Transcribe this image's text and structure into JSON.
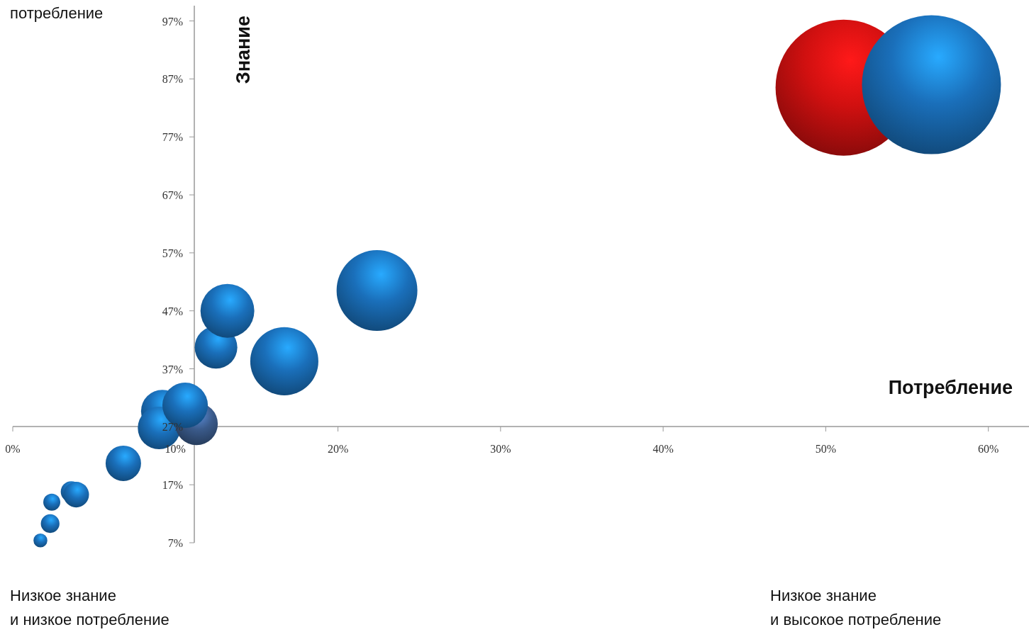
{
  "chart_data": {
    "type": "bubble",
    "xlabel": "Потребление",
    "ylabel": "Знание",
    "annotations": [
      "потребление",
      "Низкое знание\nи низкое потребление",
      "Низкое знание\nи высокое потребление"
    ],
    "xlim": [
      0,
      62.5
    ],
    "ylim": [
      7,
      100
    ],
    "xticks": [
      {
        "value": 0,
        "label": "0%"
      },
      {
        "value": 10,
        "label": "10%"
      },
      {
        "value": 20,
        "label": "20%"
      },
      {
        "value": 30,
        "label": "30%"
      },
      {
        "value": 40,
        "label": "40%"
      },
      {
        "value": 50,
        "label": "50%"
      },
      {
        "value": 60,
        "label": "60%"
      }
    ],
    "yticks": [
      {
        "value": 7,
        "label": "7%"
      },
      {
        "value": 17,
        "label": "17%"
      },
      {
        "value": 27,
        "label": "27%"
      },
      {
        "value": 37,
        "label": "37%"
      },
      {
        "value": 47,
        "label": "47%"
      },
      {
        "value": 57,
        "label": "57%"
      },
      {
        "value": 67,
        "label": "67%"
      },
      {
        "value": 77,
        "label": "77%"
      },
      {
        "value": 87,
        "label": "87%"
      },
      {
        "value": 97,
        "label": "97%"
      }
    ],
    "grid": false,
    "x": [
      1.7,
      2.3,
      2.4,
      3.6,
      3.9,
      6.8,
      9.2,
      9.0,
      11.3,
      10.6,
      12.5,
      13.2,
      16.7,
      22.4,
      51.1,
      56.5
    ],
    "values": [
      7.4,
      10.3,
      14.0,
      15.8,
      15.3,
      20.7,
      29.7,
      26.8,
      27.5,
      30.7,
      40.7,
      47.0,
      38.3,
      50.5,
      85.5,
      86.0
    ],
    "sizes": [
      0.01,
      0.018,
      0.015,
      0.023,
      0.034,
      0.065,
      0.094,
      0.094,
      0.094,
      0.107,
      0.094,
      0.15,
      0.24,
      0.338,
      0.96,
      1
    ],
    "colors": [
      "#1a6fba",
      "#1a6fba",
      "#1a6fba",
      "#1a6fba",
      "#1a6fba",
      "#1a6fba",
      "#1a6fba",
      "#1a6fba",
      "#3a5a8a",
      "#1a6fba",
      "#1a6fba",
      "#1a6fba",
      "#1a6fba",
      "#1a6fba",
      "#d01010",
      "#1a6fba"
    ]
  }
}
